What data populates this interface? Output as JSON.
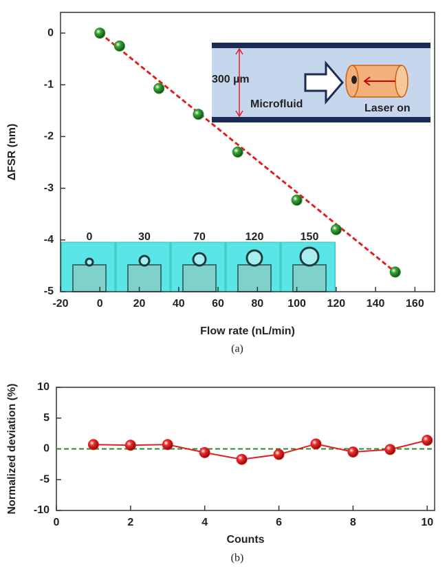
{
  "chart_data": [
    {
      "type": "scatter",
      "x_label": "Flow rate (nL/min)",
      "y_label": "ΔFSR (nm)",
      "caption": "(a)",
      "x": [
        0,
        10,
        30,
        50,
        70,
        100,
        120,
        150
      ],
      "series": [
        {
          "color": "#2b8a2b",
          "values": [
            0,
            -0.25,
            -1.07,
            -1.57,
            -2.3,
            -3.23,
            -3.8,
            -4.62
          ]
        }
      ],
      "fit": {
        "color": "#e02020",
        "x": [
          0,
          150
        ],
        "values": [
          0,
          -4.62
        ]
      },
      "xlim": [
        -20,
        170
      ],
      "xticks": [
        -20,
        0,
        20,
        40,
        60,
        80,
        100,
        120,
        140,
        160
      ],
      "ylim": [
        -5,
        0.4
      ],
      "yticks": [
        -5,
        -4,
        -3,
        -2,
        -1,
        0
      ],
      "inset_labels": [
        "300 µm",
        "Microfluid",
        "Laser on"
      ],
      "image_labels": [
        "0",
        "30",
        "70",
        "120",
        "150"
      ]
    },
    {
      "type": "line",
      "x_label": "Counts",
      "y_label": "Normalized deviation (%)",
      "caption": "(b)",
      "x": [
        1,
        2,
        3,
        4,
        5,
        6,
        7,
        8,
        9,
        10
      ],
      "series": [
        {
          "color": "#e02020",
          "values": [
            0.7,
            0.6,
            0.7,
            -0.6,
            -1.7,
            -0.9,
            0.8,
            -0.5,
            -0.1,
            1.4
          ]
        }
      ],
      "reference_line": {
        "color": "#2b8a2b",
        "value": 0
      },
      "xlim": [
        0,
        10.2
      ],
      "xticks": [
        0,
        2,
        4,
        6,
        8,
        10
      ],
      "ylim": [
        -10,
        10
      ],
      "yticks": [
        -10,
        -5,
        0,
        5,
        10
      ]
    }
  ]
}
